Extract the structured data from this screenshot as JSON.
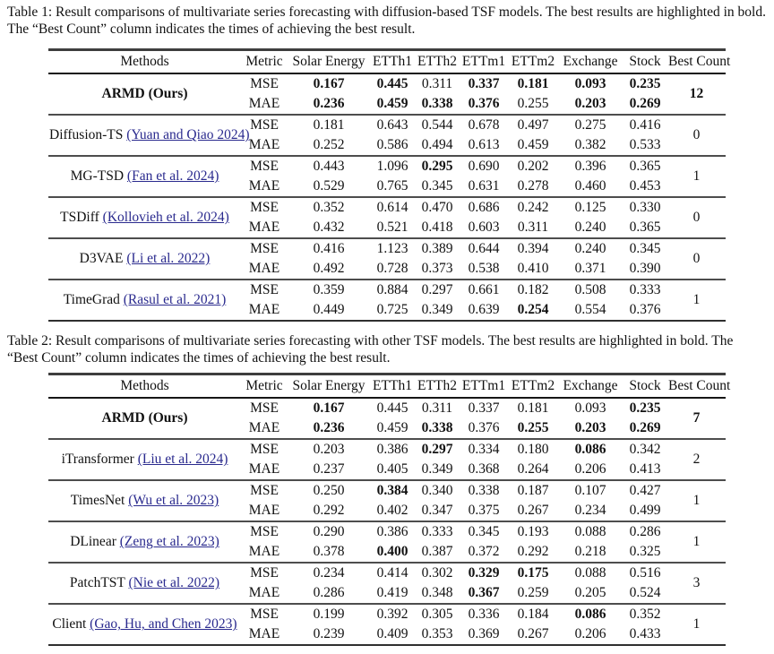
{
  "link_color": "#2a2a8e",
  "header": [
    "Methods",
    "Metric",
    "Solar Energy",
    "ETTh1",
    "ETTh2",
    "ETTm1",
    "ETTm2",
    "Exchange",
    "Stock",
    "Best Count"
  ],
  "tables": [
    {
      "caption": "Table 1: Result comparisons of multivariate series forecasting with diffusion-based TSF models. The best results are highlighted in bold. The “Best Count” column indicates the times of achieving the best result.",
      "rows": [
        {
          "method": "ARMD (Ours)",
          "citation": "",
          "method_bold": true,
          "metrics": [
            {
              "name": "MSE",
              "values": [
                "0.167",
                "0.445",
                "0.311",
                "0.337",
                "0.181",
                "0.093",
                "0.235"
              ],
              "bold": [
                true,
                true,
                false,
                true,
                true,
                true,
                true
              ]
            },
            {
              "name": "MAE",
              "values": [
                "0.236",
                "0.459",
                "0.338",
                "0.376",
                "0.255",
                "0.203",
                "0.269"
              ],
              "bold": [
                true,
                true,
                true,
                true,
                false,
                true,
                true
              ]
            }
          ],
          "best_count": "12",
          "best_count_bold": true
        },
        {
          "method": "Diffusion-TS",
          "citation": "(Yuan and Qiao 2024)",
          "method_bold": false,
          "metrics": [
            {
              "name": "MSE",
              "values": [
                "0.181",
                "0.643",
                "0.544",
                "0.678",
                "0.497",
                "0.275",
                "0.416"
              ],
              "bold": [
                false,
                false,
                false,
                false,
                false,
                false,
                false
              ]
            },
            {
              "name": "MAE",
              "values": [
                "0.252",
                "0.586",
                "0.494",
                "0.613",
                "0.459",
                "0.382",
                "0.533"
              ],
              "bold": [
                false,
                false,
                false,
                false,
                false,
                false,
                false
              ]
            }
          ],
          "best_count": "0",
          "best_count_bold": false
        },
        {
          "method": "MG-TSD",
          "citation": "(Fan et al. 2024)",
          "method_bold": false,
          "metrics": [
            {
              "name": "MSE",
              "values": [
                "0.443",
                "1.096",
                "0.295",
                "0.690",
                "0.202",
                "0.396",
                "0.365"
              ],
              "bold": [
                false,
                false,
                true,
                false,
                false,
                false,
                false
              ]
            },
            {
              "name": "MAE",
              "values": [
                "0.529",
                "0.765",
                "0.345",
                "0.631",
                "0.278",
                "0.460",
                "0.453"
              ],
              "bold": [
                false,
                false,
                false,
                false,
                false,
                false,
                false
              ]
            }
          ],
          "best_count": "1",
          "best_count_bold": false
        },
        {
          "method": "TSDiff",
          "citation": "(Kollovieh et al. 2024)",
          "method_bold": false,
          "metrics": [
            {
              "name": "MSE",
              "values": [
                "0.352",
                "0.614",
                "0.470",
                "0.686",
                "0.242",
                "0.125",
                "0.330"
              ],
              "bold": [
                false,
                false,
                false,
                false,
                false,
                false,
                false
              ]
            },
            {
              "name": "MAE",
              "values": [
                "0.432",
                "0.521",
                "0.418",
                "0.603",
                "0.311",
                "0.240",
                "0.365"
              ],
              "bold": [
                false,
                false,
                false,
                false,
                false,
                false,
                false
              ]
            }
          ],
          "best_count": "0",
          "best_count_bold": false
        },
        {
          "method": "D3VAE",
          "citation": "(Li et al. 2022)",
          "method_bold": false,
          "metrics": [
            {
              "name": "MSE",
              "values": [
                "0.416",
                "1.123",
                "0.389",
                "0.644",
                "0.394",
                "0.240",
                "0.345"
              ],
              "bold": [
                false,
                false,
                false,
                false,
                false,
                false,
                false
              ]
            },
            {
              "name": "MAE",
              "values": [
                "0.492",
                "0.728",
                "0.373",
                "0.538",
                "0.410",
                "0.371",
                "0.390"
              ],
              "bold": [
                false,
                false,
                false,
                false,
                false,
                false,
                false
              ]
            }
          ],
          "best_count": "0",
          "best_count_bold": false
        },
        {
          "method": "TimeGrad",
          "citation": "(Rasul et al. 2021)",
          "method_bold": false,
          "metrics": [
            {
              "name": "MSE",
              "values": [
                "0.359",
                "0.884",
                "0.297",
                "0.661",
                "0.182",
                "0.508",
                "0.333"
              ],
              "bold": [
                false,
                false,
                false,
                false,
                false,
                false,
                false
              ]
            },
            {
              "name": "MAE",
              "values": [
                "0.449",
                "0.725",
                "0.349",
                "0.639",
                "0.254",
                "0.554",
                "0.376"
              ],
              "bold": [
                false,
                false,
                false,
                false,
                true,
                false,
                false
              ]
            }
          ],
          "best_count": "1",
          "best_count_bold": false
        }
      ]
    },
    {
      "caption": "Table 2: Result comparisons of multivariate series forecasting with other TSF models. The best results are highlighted in bold. The “Best Count” column indicates the times of achieving the best result.",
      "rows": [
        {
          "method": "ARMD (Ours)",
          "citation": "",
          "method_bold": true,
          "metrics": [
            {
              "name": "MSE",
              "values": [
                "0.167",
                "0.445",
                "0.311",
                "0.337",
                "0.181",
                "0.093",
                "0.235"
              ],
              "bold": [
                true,
                false,
                false,
                false,
                false,
                false,
                true
              ]
            },
            {
              "name": "MAE",
              "values": [
                "0.236",
                "0.459",
                "0.338",
                "0.376",
                "0.255",
                "0.203",
                "0.269"
              ],
              "bold": [
                true,
                false,
                true,
                false,
                true,
                true,
                true
              ]
            }
          ],
          "best_count": "7",
          "best_count_bold": true
        },
        {
          "method": "iTransformer",
          "citation": "(Liu et al. 2024)",
          "method_bold": false,
          "metrics": [
            {
              "name": "MSE",
              "values": [
                "0.203",
                "0.386",
                "0.297",
                "0.334",
                "0.180",
                "0.086",
                "0.342"
              ],
              "bold": [
                false,
                false,
                true,
                false,
                false,
                true,
                false
              ]
            },
            {
              "name": "MAE",
              "values": [
                "0.237",
                "0.405",
                "0.349",
                "0.368",
                "0.264",
                "0.206",
                "0.413"
              ],
              "bold": [
                false,
                false,
                false,
                false,
                false,
                false,
                false
              ]
            }
          ],
          "best_count": "2",
          "best_count_bold": false
        },
        {
          "method": "TimesNet",
          "citation": "(Wu et al. 2023)",
          "method_bold": false,
          "metrics": [
            {
              "name": "MSE",
              "values": [
                "0.250",
                "0.384",
                "0.340",
                "0.338",
                "0.187",
                "0.107",
                "0.427"
              ],
              "bold": [
                false,
                true,
                false,
                false,
                false,
                false,
                false
              ]
            },
            {
              "name": "MAE",
              "values": [
                "0.292",
                "0.402",
                "0.347",
                "0.375",
                "0.267",
                "0.234",
                "0.499"
              ],
              "bold": [
                false,
                false,
                false,
                false,
                false,
                false,
                false
              ]
            }
          ],
          "best_count": "1",
          "best_count_bold": false
        },
        {
          "method": "DLinear",
          "citation": "(Zeng et al. 2023)",
          "method_bold": false,
          "metrics": [
            {
              "name": "MSE",
              "values": [
                "0.290",
                "0.386",
                "0.333",
                "0.345",
                "0.193",
                "0.088",
                "0.286"
              ],
              "bold": [
                false,
                false,
                false,
                false,
                false,
                false,
                false
              ]
            },
            {
              "name": "MAE",
              "values": [
                "0.378",
                "0.400",
                "0.387",
                "0.372",
                "0.292",
                "0.218",
                "0.325"
              ],
              "bold": [
                false,
                true,
                false,
                false,
                false,
                false,
                false
              ]
            }
          ],
          "best_count": "1",
          "best_count_bold": false
        },
        {
          "method": "PatchTST",
          "citation": "(Nie et al. 2022)",
          "method_bold": false,
          "metrics": [
            {
              "name": "MSE",
              "values": [
                "0.234",
                "0.414",
                "0.302",
                "0.329",
                "0.175",
                "0.088",
                "0.516"
              ],
              "bold": [
                false,
                false,
                false,
                true,
                true,
                false,
                false
              ]
            },
            {
              "name": "MAE",
              "values": [
                "0.286",
                "0.419",
                "0.348",
                "0.367",
                "0.259",
                "0.205",
                "0.524"
              ],
              "bold": [
                false,
                false,
                false,
                true,
                false,
                false,
                false
              ]
            }
          ],
          "best_count": "3",
          "best_count_bold": false
        },
        {
          "method": "Client",
          "citation": "(Gao, Hu, and Chen 2023)",
          "method_bold": false,
          "metrics": [
            {
              "name": "MSE",
              "values": [
                "0.199",
                "0.392",
                "0.305",
                "0.336",
                "0.184",
                "0.086",
                "0.352"
              ],
              "bold": [
                false,
                false,
                false,
                false,
                false,
                true,
                false
              ]
            },
            {
              "name": "MAE",
              "values": [
                "0.239",
                "0.409",
                "0.353",
                "0.369",
                "0.267",
                "0.206",
                "0.433"
              ],
              "bold": [
                false,
                false,
                false,
                false,
                false,
                false,
                false
              ]
            }
          ],
          "best_count": "1",
          "best_count_bold": false
        }
      ]
    }
  ]
}
